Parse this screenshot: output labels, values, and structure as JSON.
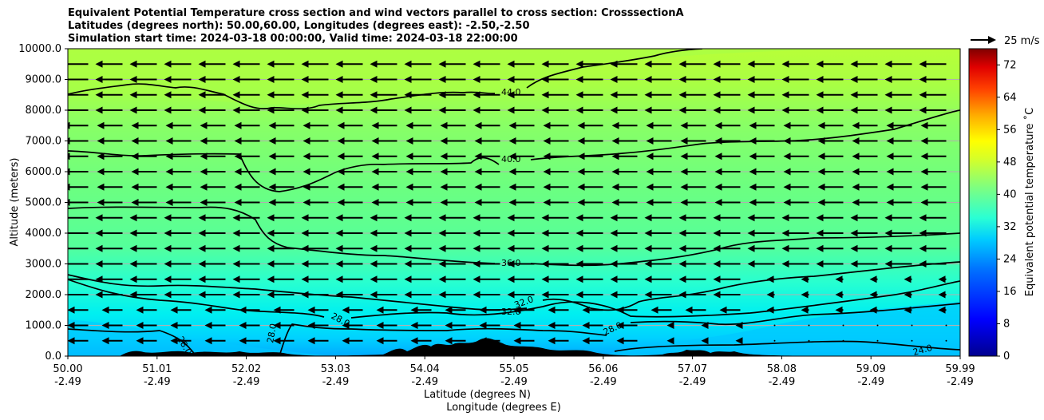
{
  "chart_data": {
    "type": "cross-section contour with wind vectors",
    "title_lines": [
      "Equivalent Potential Temperature cross section and wind vectors parallel to cross section: CrosssectionA",
      "Latitudes (degrees north): 50.00,60.00, Longitudes (degrees east): -2.50,-2.50",
      "Simulation start time: 2024-03-18 00:00:00, Valid time: 2024-03-18 22:00:00"
    ],
    "ylabel": "Altitude (meters)",
    "xlabel": "Latitude (degrees N)",
    "xlabel2": "Longitude (degrees E)",
    "ylim": [
      0,
      10000
    ],
    "xlim": [
      50.0,
      59.99
    ],
    "yticks": [
      "0.0",
      "1000.0",
      "2000.0",
      "3000.0",
      "4000.0",
      "5000.0",
      "6000.0",
      "7000.0",
      "8000.0",
      "9000.0",
      "10000.0"
    ],
    "xticks": [
      {
        "lat": "50.00",
        "lon": "-2.49"
      },
      {
        "lat": "51.01",
        "lon": "-2.49"
      },
      {
        "lat": "52.02",
        "lon": "-2.49"
      },
      {
        "lat": "53.03",
        "lon": "-2.49"
      },
      {
        "lat": "54.04",
        "lon": "-2.49"
      },
      {
        "lat": "55.05",
        "lon": "-2.49"
      },
      {
        "lat": "56.06",
        "lon": "-2.49"
      },
      {
        "lat": "57.07",
        "lon": "-2.49"
      },
      {
        "lat": "58.08",
        "lon": "-2.49"
      },
      {
        "lat": "59.09",
        "lon": "-2.49"
      },
      {
        "lat": "59.99",
        "lon": "-2.49"
      }
    ],
    "grid": "horizontal",
    "colorbar": {
      "label": "Equivalent potential temperature ˚C",
      "range": [
        0,
        76
      ],
      "ticks": [
        "0",
        "8",
        "16",
        "24",
        "32",
        "40",
        "48",
        "56",
        "64",
        "72"
      ]
    },
    "quiver_key": "25 m/s",
    "contour_labels": [
      "44.0",
      "40.0",
      "36.0",
      "32.0",
      "32.0",
      "28.0",
      "28.0",
      "28.0",
      "28.0",
      "24.0"
    ],
    "contour_levels": [
      44,
      40,
      36,
      32,
      28,
      24
    ],
    "wind": {
      "direction": "toward lower latitude (left)",
      "typical_speed_ms": 25
    }
  }
}
